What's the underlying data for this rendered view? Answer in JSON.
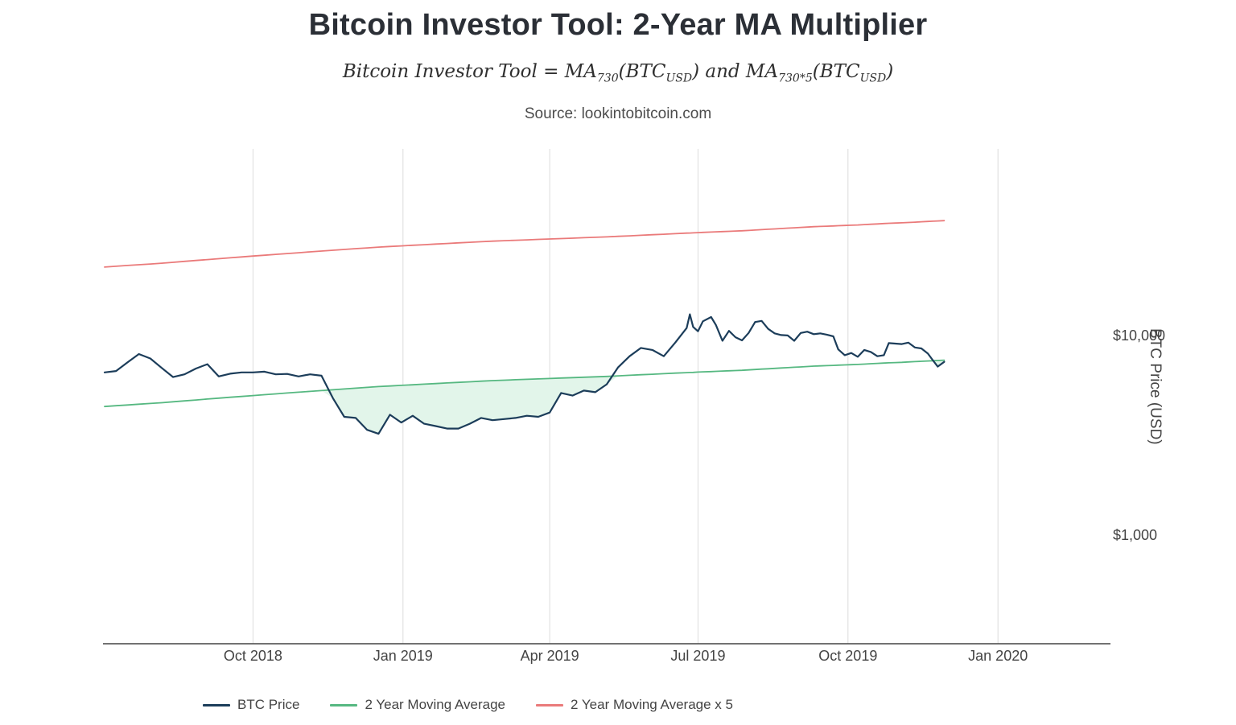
{
  "chart_data": {
    "type": "line",
    "title": "Bitcoin Investor Tool: 2-Year MA Multiplier",
    "formula": {
      "p1": "Bitcoin Investor Tool = MA",
      "s1": "730",
      "p2": "(BTC",
      "s2": "USD",
      "p3": ") and MA",
      "s3": "730*5",
      "p4": "(BTC",
      "s4": "USD",
      "p5": ")"
    },
    "source": "Source: lookintobitcoin.com",
    "ylabel": "BTC Price (USD)",
    "y_scale": "log",
    "y_ticks": [
      "$10,000",
      "$1,000"
    ],
    "y_tick_values": [
      10000,
      1000
    ],
    "x_ticks": [
      "Oct 2018",
      "Jan 2019",
      "Apr 2019",
      "Jul 2019",
      "Oct 2019",
      "Jan 2020"
    ],
    "x_tick_dates": [
      "2018-10-01",
      "2019-01-01",
      "2019-04-01",
      "2019-07-01",
      "2019-10-01",
      "2020-01-01"
    ],
    "x_domain": [
      "2018-07-01",
      "2020-03-10"
    ],
    "grid": "vertical-only",
    "legend_position": "bottom",
    "dates": [
      "2018-07-02",
      "2018-07-09",
      "2018-07-16",
      "2018-07-23",
      "2018-07-30",
      "2018-08-06",
      "2018-08-13",
      "2018-08-20",
      "2018-08-27",
      "2018-09-03",
      "2018-09-10",
      "2018-09-17",
      "2018-09-24",
      "2018-10-01",
      "2018-10-08",
      "2018-10-15",
      "2018-10-22",
      "2018-10-29",
      "2018-11-05",
      "2018-11-12",
      "2018-11-19",
      "2018-11-26",
      "2018-12-03",
      "2018-12-10",
      "2018-12-17",
      "2018-12-24",
      "2018-12-31",
      "2019-01-07",
      "2019-01-14",
      "2019-01-21",
      "2019-01-28",
      "2019-02-04",
      "2019-02-11",
      "2019-02-18",
      "2019-02-25",
      "2019-03-04",
      "2019-03-11",
      "2019-03-18",
      "2019-03-25",
      "2019-04-01",
      "2019-04-08",
      "2019-04-15",
      "2019-04-22",
      "2019-04-29",
      "2019-05-06",
      "2019-05-13",
      "2019-05-20",
      "2019-05-27",
      "2019-06-03",
      "2019-06-10",
      "2019-06-17",
      "2019-06-24",
      "2019-06-26",
      "2019-06-28",
      "2019-07-01",
      "2019-07-04",
      "2019-07-09",
      "2019-07-12",
      "2019-07-16",
      "2019-07-20",
      "2019-07-24",
      "2019-07-28",
      "2019-08-01",
      "2019-08-05",
      "2019-08-09",
      "2019-08-13",
      "2019-08-17",
      "2019-08-21",
      "2019-08-25",
      "2019-08-29",
      "2019-09-02",
      "2019-09-06",
      "2019-09-10",
      "2019-09-14",
      "2019-09-18",
      "2019-09-22",
      "2019-09-25",
      "2019-09-29",
      "2019-10-03",
      "2019-10-07",
      "2019-10-11",
      "2019-10-15",
      "2019-10-19",
      "2019-10-23",
      "2019-10-26",
      "2019-10-30",
      "2019-11-03",
      "2019-11-07",
      "2019-11-11",
      "2019-11-15",
      "2019-11-19",
      "2019-11-22",
      "2019-11-25",
      "2019-11-29"
    ],
    "series": [
      {
        "name": "BTC Price",
        "color": "#1c3d5a",
        "values": [
          6600,
          6700,
          7400,
          8150,
          7750,
          6950,
          6250,
          6450,
          6900,
          7250,
          6300,
          6500,
          6600,
          6600,
          6650,
          6450,
          6480,
          6300,
          6450,
          6350,
          4900,
          3950,
          3900,
          3400,
          3250,
          4050,
          3700,
          4000,
          3650,
          3550,
          3450,
          3450,
          3650,
          3900,
          3800,
          3850,
          3900,
          4000,
          3950,
          4150,
          5200,
          5050,
          5350,
          5250,
          5750,
          7000,
          7950,
          8750,
          8550,
          7950,
          9300,
          11000,
          12900,
          11150,
          10600,
          11900,
          12500,
          11400,
          9500,
          10650,
          9900,
          9550,
          10400,
          11800,
          11950,
          10900,
          10350,
          10150,
          10100,
          9500,
          10400,
          10550,
          10250,
          10350,
          10200,
          10000,
          8600,
          8050,
          8250,
          7900,
          8550,
          8350,
          7950,
          8050,
          9250,
          9200,
          9150,
          9300,
          8800,
          8700,
          8200,
          7600,
          7050,
          7450
        ]
      },
      {
        "name": "2 Year Moving Average",
        "color": "#56b881",
        "values": [
          4450,
          4490,
          4530,
          4570,
          4610,
          4650,
          4700,
          4750,
          4800,
          4850,
          4900,
          4950,
          5000,
          5050,
          5100,
          5150,
          5200,
          5250,
          5300,
          5350,
          5400,
          5450,
          5500,
          5550,
          5600,
          5640,
          5680,
          5720,
          5760,
          5800,
          5840,
          5880,
          5920,
          5960,
          6000,
          6030,
          6060,
          6090,
          6120,
          6150,
          6180,
          6210,
          6240,
          6270,
          6300,
          6340,
          6380,
          6420,
          6460,
          6500,
          6540,
          6580,
          6590,
          6600,
          6620,
          6640,
          6660,
          6680,
          6700,
          6720,
          6740,
          6760,
          6790,
          6820,
          6850,
          6880,
          6910,
          6940,
          6970,
          7000,
          7030,
          7060,
          7090,
          7110,
          7130,
          7150,
          7170,
          7190,
          7210,
          7230,
          7260,
          7290,
          7320,
          7350,
          7370,
          7390,
          7410,
          7440,
          7470,
          7500,
          7530,
          7550,
          7570,
          7600
        ]
      },
      {
        "name": "2 Year Moving Average x 5",
        "color": "#ea7a7a",
        "values": [
          22250,
          22450,
          22650,
          22850,
          23050,
          23250,
          23500,
          23750,
          24000,
          24250,
          24500,
          24750,
          25000,
          25250,
          25500,
          25750,
          26000,
          26250,
          26500,
          26750,
          27000,
          27250,
          27500,
          27750,
          28000,
          28200,
          28400,
          28600,
          28800,
          29000,
          29200,
          29400,
          29600,
          29800,
          30000,
          30150,
          30300,
          30450,
          30600,
          30750,
          30900,
          31050,
          31200,
          31350,
          31500,
          31700,
          31900,
          32100,
          32300,
          32500,
          32700,
          32900,
          32950,
          33000,
          33100,
          33200,
          33300,
          33400,
          33500,
          33600,
          33700,
          33800,
          33950,
          34100,
          34250,
          34400,
          34550,
          34700,
          34850,
          35000,
          35150,
          35300,
          35450,
          35550,
          35650,
          35750,
          35850,
          35950,
          36050,
          36150,
          36300,
          36450,
          36600,
          36750,
          36850,
          36950,
          37050,
          37200,
          37350,
          37500,
          37650,
          37750,
          37850,
          38000
        ]
      }
    ],
    "fill_between": {
      "upper": "2 Year Moving Average",
      "lower": "BTC Price",
      "condition": "price below moving average",
      "color": "#e2f5ea"
    }
  }
}
